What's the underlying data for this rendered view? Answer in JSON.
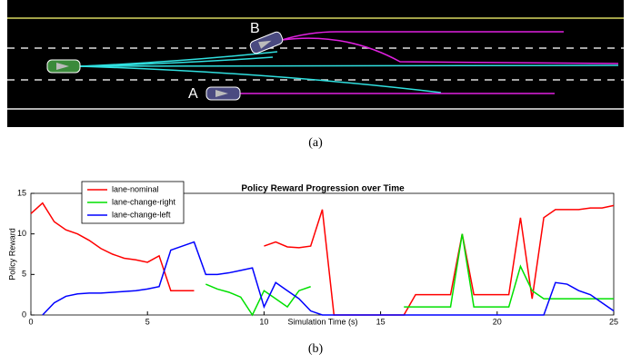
{
  "scene": {
    "labels": [
      "B",
      "A"
    ]
  },
  "captions": [
    "(a)",
    "(b)"
  ],
  "chart_data": {
    "type": "line",
    "title": "Policy Reward Progression over Time",
    "x_label": "Simulation Time (s)",
    "y_label": "Policy Reward",
    "x": [
      0,
      0.5,
      1,
      1.5,
      2,
      2.5,
      3,
      3.5,
      4,
      4.5,
      5,
      5.5,
      6,
      6.5,
      7,
      7.5,
      8,
      8.5,
      9,
      9.5,
      10,
      10.5,
      11,
      11.5,
      12,
      12.5,
      13,
      13.5,
      14,
      14.5,
      15,
      15.5,
      16,
      16.5,
      17,
      17.5,
      18,
      18.5,
      19,
      19.5,
      20,
      20.5,
      21,
      21.5,
      22,
      22.5,
      23,
      23.5,
      24,
      24.5,
      25
    ],
    "series": [
      {
        "name": "lane-nominal",
        "color": "#ff0000",
        "values": [
          12.5,
          13.8,
          11.5,
          10.5,
          10,
          9.2,
          8.2,
          7.5,
          7,
          6.8,
          6.5,
          7.3,
          3,
          3,
          3,
          null,
          null,
          null,
          null,
          null,
          8.5,
          9,
          8.4,
          8.3,
          8.5,
          13,
          0,
          0,
          0,
          0,
          0,
          0,
          0,
          2.5,
          2.5,
          2.5,
          2.5,
          10,
          2.5,
          2.5,
          2.5,
          2.5,
          12,
          2,
          12,
          13,
          13,
          13,
          13.2,
          13.2,
          13.5
        ]
      },
      {
        "name": "lane-change-right",
        "color": "#00e000",
        "values": [
          null,
          null,
          null,
          null,
          null,
          null,
          null,
          null,
          null,
          null,
          null,
          null,
          null,
          null,
          null,
          3.8,
          3.2,
          2.8,
          2.2,
          0,
          3,
          2,
          1,
          3,
          3.5,
          null,
          null,
          null,
          null,
          null,
          null,
          null,
          1,
          1,
          1,
          1,
          1,
          10,
          1,
          1,
          1,
          1,
          6,
          3,
          2,
          2,
          2,
          2,
          2,
          2,
          2
        ]
      },
      {
        "name": "lane-change-left",
        "color": "#0000ff",
        "values": [
          null,
          0,
          1.5,
          2.3,
          2.6,
          2.7,
          2.7,
          2.8,
          2.9,
          3,
          3.2,
          3.5,
          8,
          8.5,
          9,
          5,
          5,
          5.2,
          5.5,
          5.8,
          1,
          4,
          3,
          2,
          0.5,
          0,
          0,
          0,
          0,
          0,
          0,
          0,
          0,
          0,
          0,
          0,
          0,
          0,
          0,
          0,
          0,
          0,
          0,
          0,
          0,
          4,
          3.8,
          3,
          2.5,
          1.5,
          0.5
        ]
      }
    ],
    "xlim": [
      0,
      25
    ],
    "ylim": [
      0,
      15
    ],
    "xticks": [
      0,
      5,
      10,
      15,
      20,
      25
    ],
    "yticks": [
      0,
      5,
      10,
      15
    ],
    "legend": "upper left"
  }
}
